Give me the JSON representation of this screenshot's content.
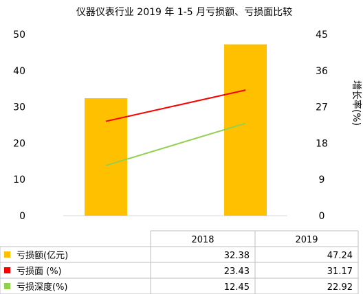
{
  "chart_data": {
    "type": "bar",
    "title": "仪器仪表行业 2019 年 1-5 月亏损额、亏损面比较",
    "categories": [
      "2018",
      "2019"
    ],
    "left_axis": {
      "ticks": [
        "0",
        "10",
        "20",
        "30",
        "40",
        "50"
      ],
      "ylim": [
        0,
        50
      ]
    },
    "right_axis": {
      "label": "增长率(%)",
      "label_chars": [
        "增",
        "长",
        "率",
        "(%)"
      ],
      "ticks": [
        "0",
        "9",
        "18",
        "27",
        "36",
        "45"
      ],
      "ylim": [
        0,
        45
      ]
    },
    "series": [
      {
        "name": "亏损额(亿元)",
        "type": "bar",
        "axis": "left",
        "color": "#FFC000",
        "values": [
          32.38,
          47.24
        ],
        "labels": [
          "32.38",
          "47.24"
        ]
      },
      {
        "name": "亏损面 (%)",
        "type": "line",
        "axis": "right",
        "color": "#FF0000",
        "values": [
          23.43,
          31.17
        ],
        "labels": [
          "23.43",
          "31.17"
        ]
      },
      {
        "name": "亏损深度(%)",
        "type": "line",
        "axis": "right",
        "color": "#92D050",
        "values": [
          12.45,
          22.92
        ],
        "labels": [
          "12.45",
          "22.92"
        ]
      }
    ],
    "legend_position": "data table below chart",
    "grid": false
  }
}
